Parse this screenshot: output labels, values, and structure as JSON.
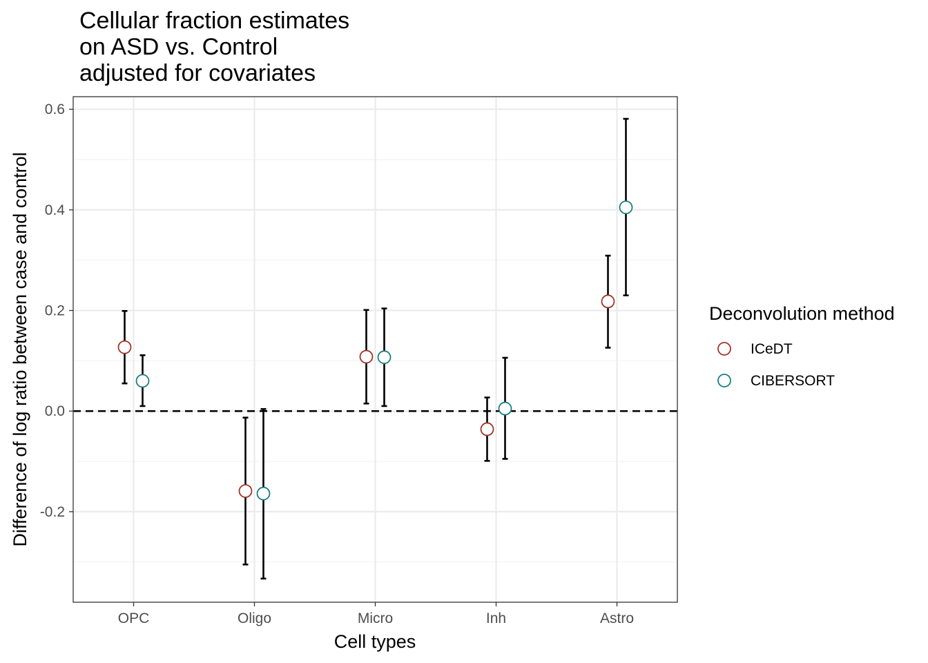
{
  "chart_data": {
    "type": "scatter",
    "title_lines": [
      "Cellular fraction estimates",
      "on ASD vs. Control",
      "adjusted for covariates"
    ],
    "xlabel": "Cell types",
    "ylabel": "Difference of log ratio between case and control",
    "categories": [
      "OPC",
      "Oligo",
      "Micro",
      "Inh",
      "Astro"
    ],
    "yticks": [
      "0.6",
      "0.4",
      "0.2",
      "0.0",
      "-0.2"
    ],
    "ytick_values": [
      0.6,
      0.4,
      0.2,
      0.0,
      -0.2
    ],
    "ylim": [
      -0.38,
      0.625
    ],
    "grid": true,
    "reference_line": 0.0,
    "legend": {
      "title": "Deconvolution method",
      "position": "right",
      "items": [
        "ICeDT",
        "CIBERSORT"
      ]
    },
    "series": [
      {
        "name": "ICeDT",
        "color": "#a0342a",
        "values": [
          0.127,
          -0.159,
          0.108,
          -0.036,
          0.218
        ],
        "lower": [
          0.055,
          -0.305,
          0.015,
          -0.099,
          0.126
        ],
        "upper": [
          0.199,
          -0.013,
          0.201,
          0.027,
          0.309
        ]
      },
      {
        "name": "CIBERSORT",
        "color": "#1a7f7f",
        "values": [
          0.06,
          -0.164,
          0.107,
          0.005,
          0.405
        ],
        "lower": [
          0.01,
          -0.333,
          0.01,
          -0.095,
          0.23
        ],
        "upper": [
          0.111,
          0.004,
          0.204,
          0.106,
          0.581
        ]
      }
    ]
  }
}
